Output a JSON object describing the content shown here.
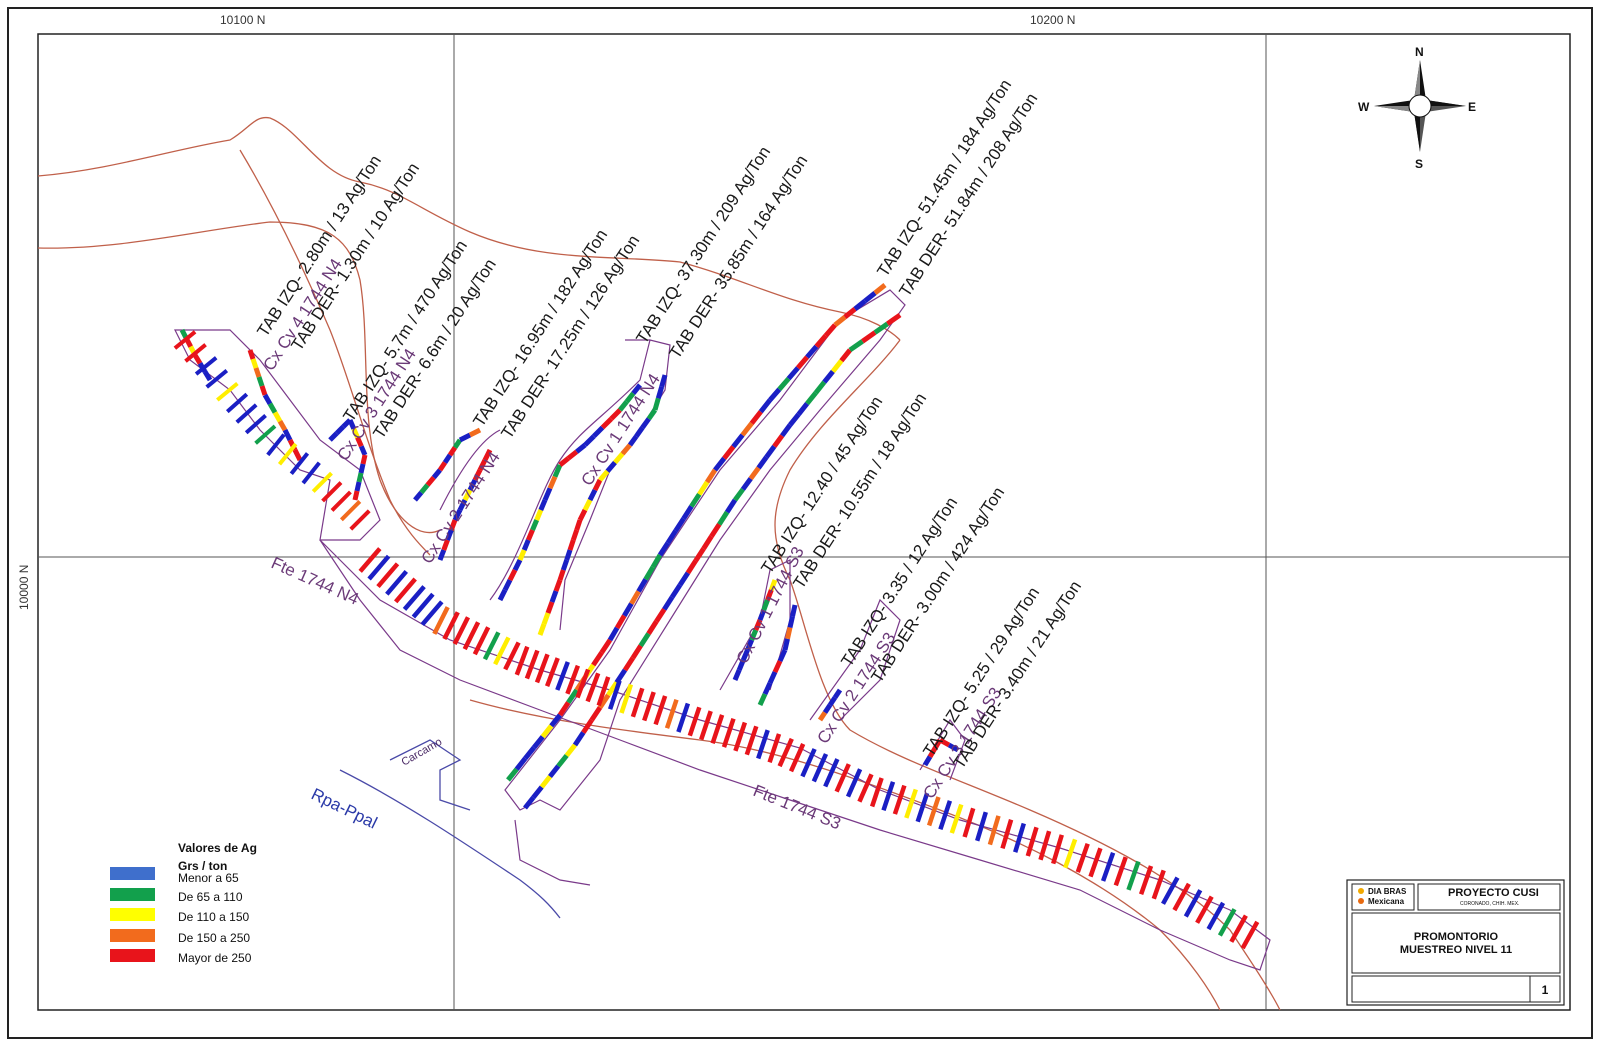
{
  "grid": {
    "north_labels": [
      "10100 N",
      "10200 N"
    ],
    "east_label": "10000 N"
  },
  "compass": {
    "n": "N",
    "s": "S",
    "e": "E",
    "w": "W"
  },
  "annotations": [
    "TAB IZQ- 2.80m / 13 Ag/Ton",
    "TAB DER- 1.30m / 10 Ag/Ton",
    "TAB IZQ- 5.7m / 470 Ag/Ton",
    "TAB DER- 6.6m / 20 Ag/Ton",
    "TAB IZQ- 16.95m / 182 Ag/Ton",
    "TAB DER- 17.25m / 126 Ag/Ton",
    "TAB IZQ- 37.30m / 209 Ag/Ton",
    "TAB DER- 35.85m / 164 Ag/Ton",
    "TAB IZQ- 51.45m / 184 Ag/Ton",
    "TAB DER- 51.84m / 208 Ag/Ton",
    "TAB IZQ- 12.40 / 45 Ag/Ton",
    "TAB DER- 10.55m / 18 Ag/Ton",
    "TAB IZQ- 3.35 / 12 Ag/Ton",
    "TAB DER- 3.00m / 424 Ag/Ton",
    "TAB IZQ- 5.25 / 29 Ag/Ton",
    "TAB DER- 3.40m / 21 Ag/Ton"
  ],
  "tunnels": [
    "Cx Cv 4 1744 N4",
    "Cx Cv 3 1744 N4",
    "Cx Cv 2 1744 N4",
    "Cx Cv 1 1744 N4",
    "Cx Cv 1 1744 S3",
    "Cx Cv 2 1744 S3",
    "Cx Cv 3 1744 S3",
    "Fte 1744 N4",
    "Fte 1744 S3"
  ],
  "ramp_label": "Rpa-Ppal",
  "carcamo_label": "Carcamo",
  "legend": {
    "title1": "Valores de Ag",
    "title2": "Grs / ton",
    "items": [
      {
        "label": "Menor a 65",
        "color": "#3f6fcc"
      },
      {
        "label": "De 65  a 110",
        "color": "#12a04c"
      },
      {
        "label": "De 110 a 150",
        "color": "#ffff00"
      },
      {
        "label": "De 150 a 250",
        "color": "#f26b1d"
      },
      {
        "label": "Mayor de 250",
        "color": "#e8141b"
      }
    ]
  },
  "title_block": {
    "company_line1": "DIA BRAS",
    "company_line2": "Mexicana",
    "project": "PROYECTO CUSI",
    "project_sub": "CORONADO, CHIH. MEX.",
    "title1": "PROMONTORIO",
    "title2": "MUESTREO NIVEL 11",
    "sheet": "1"
  },
  "colors": {
    "blue": "#1a1fc4",
    "green": "#12a04c",
    "yellow": "#ffee00",
    "orange": "#f26b1d",
    "red": "#e8141b",
    "outline": "#7a3a8a",
    "contour": "#c0604a"
  }
}
